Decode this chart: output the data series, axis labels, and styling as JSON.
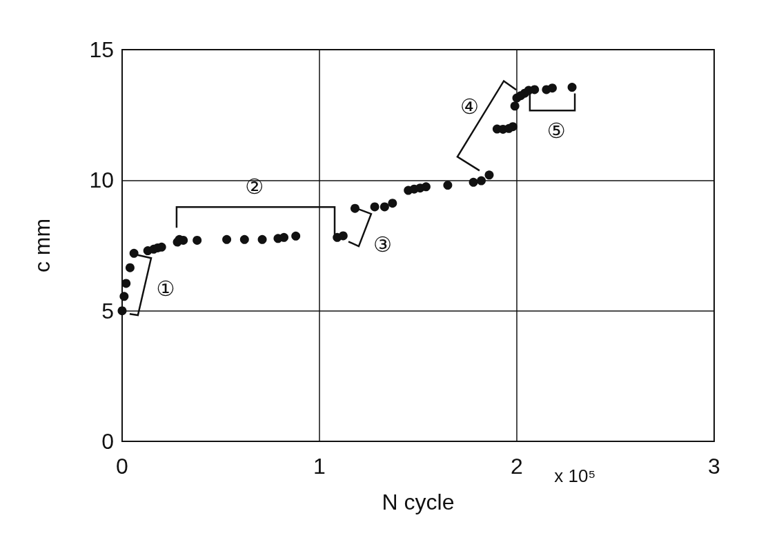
{
  "chart_data": {
    "type": "scatter",
    "xlabel": "N cycle",
    "ylabel": "c mm",
    "x": [
      0.0,
      0.01,
      0.02,
      0.04,
      0.06,
      0.13,
      0.16,
      0.18,
      0.2,
      0.28,
      0.29,
      0.31,
      0.38,
      0.53,
      0.62,
      0.71,
      0.79,
      0.82,
      0.88,
      1.09,
      1.12,
      1.18,
      1.28,
      1.33,
      1.37,
      1.45,
      1.48,
      1.51,
      1.54,
      1.65,
      1.78,
      1.82,
      1.86,
      1.9,
      1.93,
      1.96,
      1.98,
      1.99,
      2.0,
      2.02,
      2.04,
      2.06,
      2.09,
      2.15,
      2.18,
      2.28
    ],
    "values": [
      5.0,
      5.55,
      6.05,
      6.65,
      7.2,
      7.3,
      7.36,
      7.41,
      7.44,
      7.63,
      7.73,
      7.7,
      7.7,
      7.73,
      7.73,
      7.73,
      7.77,
      7.81,
      7.86,
      7.81,
      7.87,
      8.92,
      8.98,
      8.98,
      9.12,
      9.61,
      9.66,
      9.7,
      9.75,
      9.81,
      9.92,
      9.98,
      10.2,
      11.96,
      11.95,
      11.98,
      12.05,
      12.84,
      13.15,
      13.24,
      13.33,
      13.44,
      13.47,
      13.47,
      13.53,
      13.56
    ],
    "color": "#111111",
    "marker": "circle",
    "xlim": [
      0,
      3
    ],
    "ylim": [
      0,
      15
    ],
    "xticks": [
      0,
      1,
      2,
      3
    ],
    "yticks": [
      0,
      5,
      10,
      15
    ],
    "grid": true,
    "annotations": [
      "①",
      "②",
      "③",
      "④",
      {
        "text": "⑤",
        "x": 2.28,
        "y": 13.56
      },
      "x 10⁵"
    ]
  }
}
